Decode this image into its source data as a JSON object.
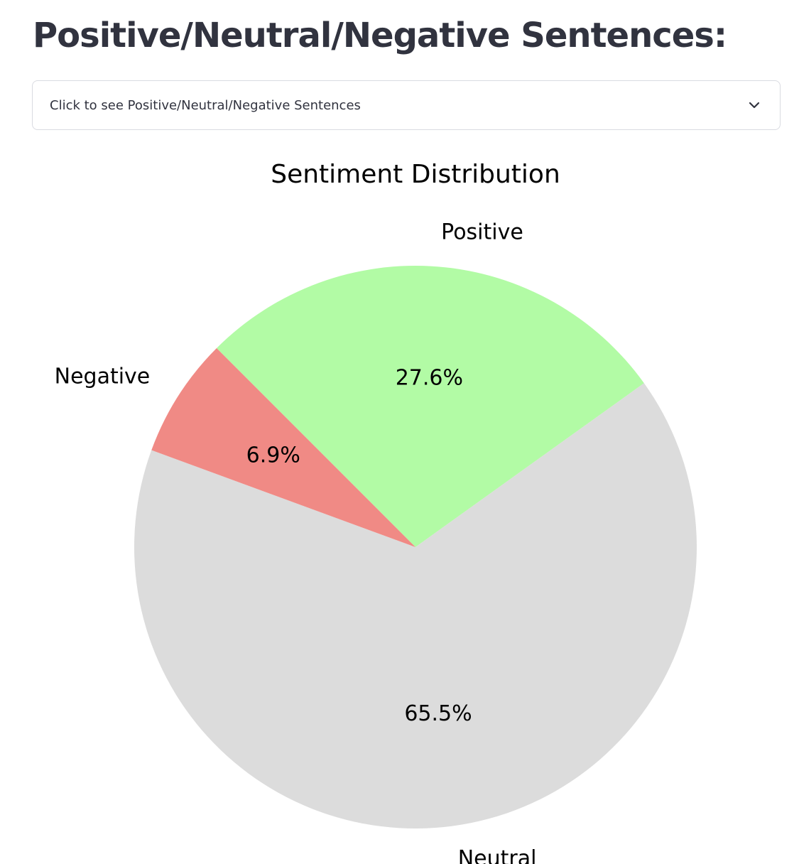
{
  "page": {
    "title": "Positive/Neutral/Negative Sentences:"
  },
  "expander": {
    "label": "Click to see Positive/Neutral/Negative Sentences",
    "icon": "chevron-down-icon",
    "expanded": false
  },
  "chart_data": {
    "type": "pie",
    "title": "Sentiment Distribution",
    "categories": [
      "Positive",
      "Neutral",
      "Negative"
    ],
    "values": [
      27.6,
      65.5,
      6.9
    ],
    "labels": [
      "27.6%",
      "65.5%",
      "6.9%"
    ],
    "colors": [
      "#b2fba5",
      "#dcdcdc",
      "#f08a85"
    ],
    "start_angle_deg": 135,
    "direction": "clockwise",
    "legend": "none"
  }
}
